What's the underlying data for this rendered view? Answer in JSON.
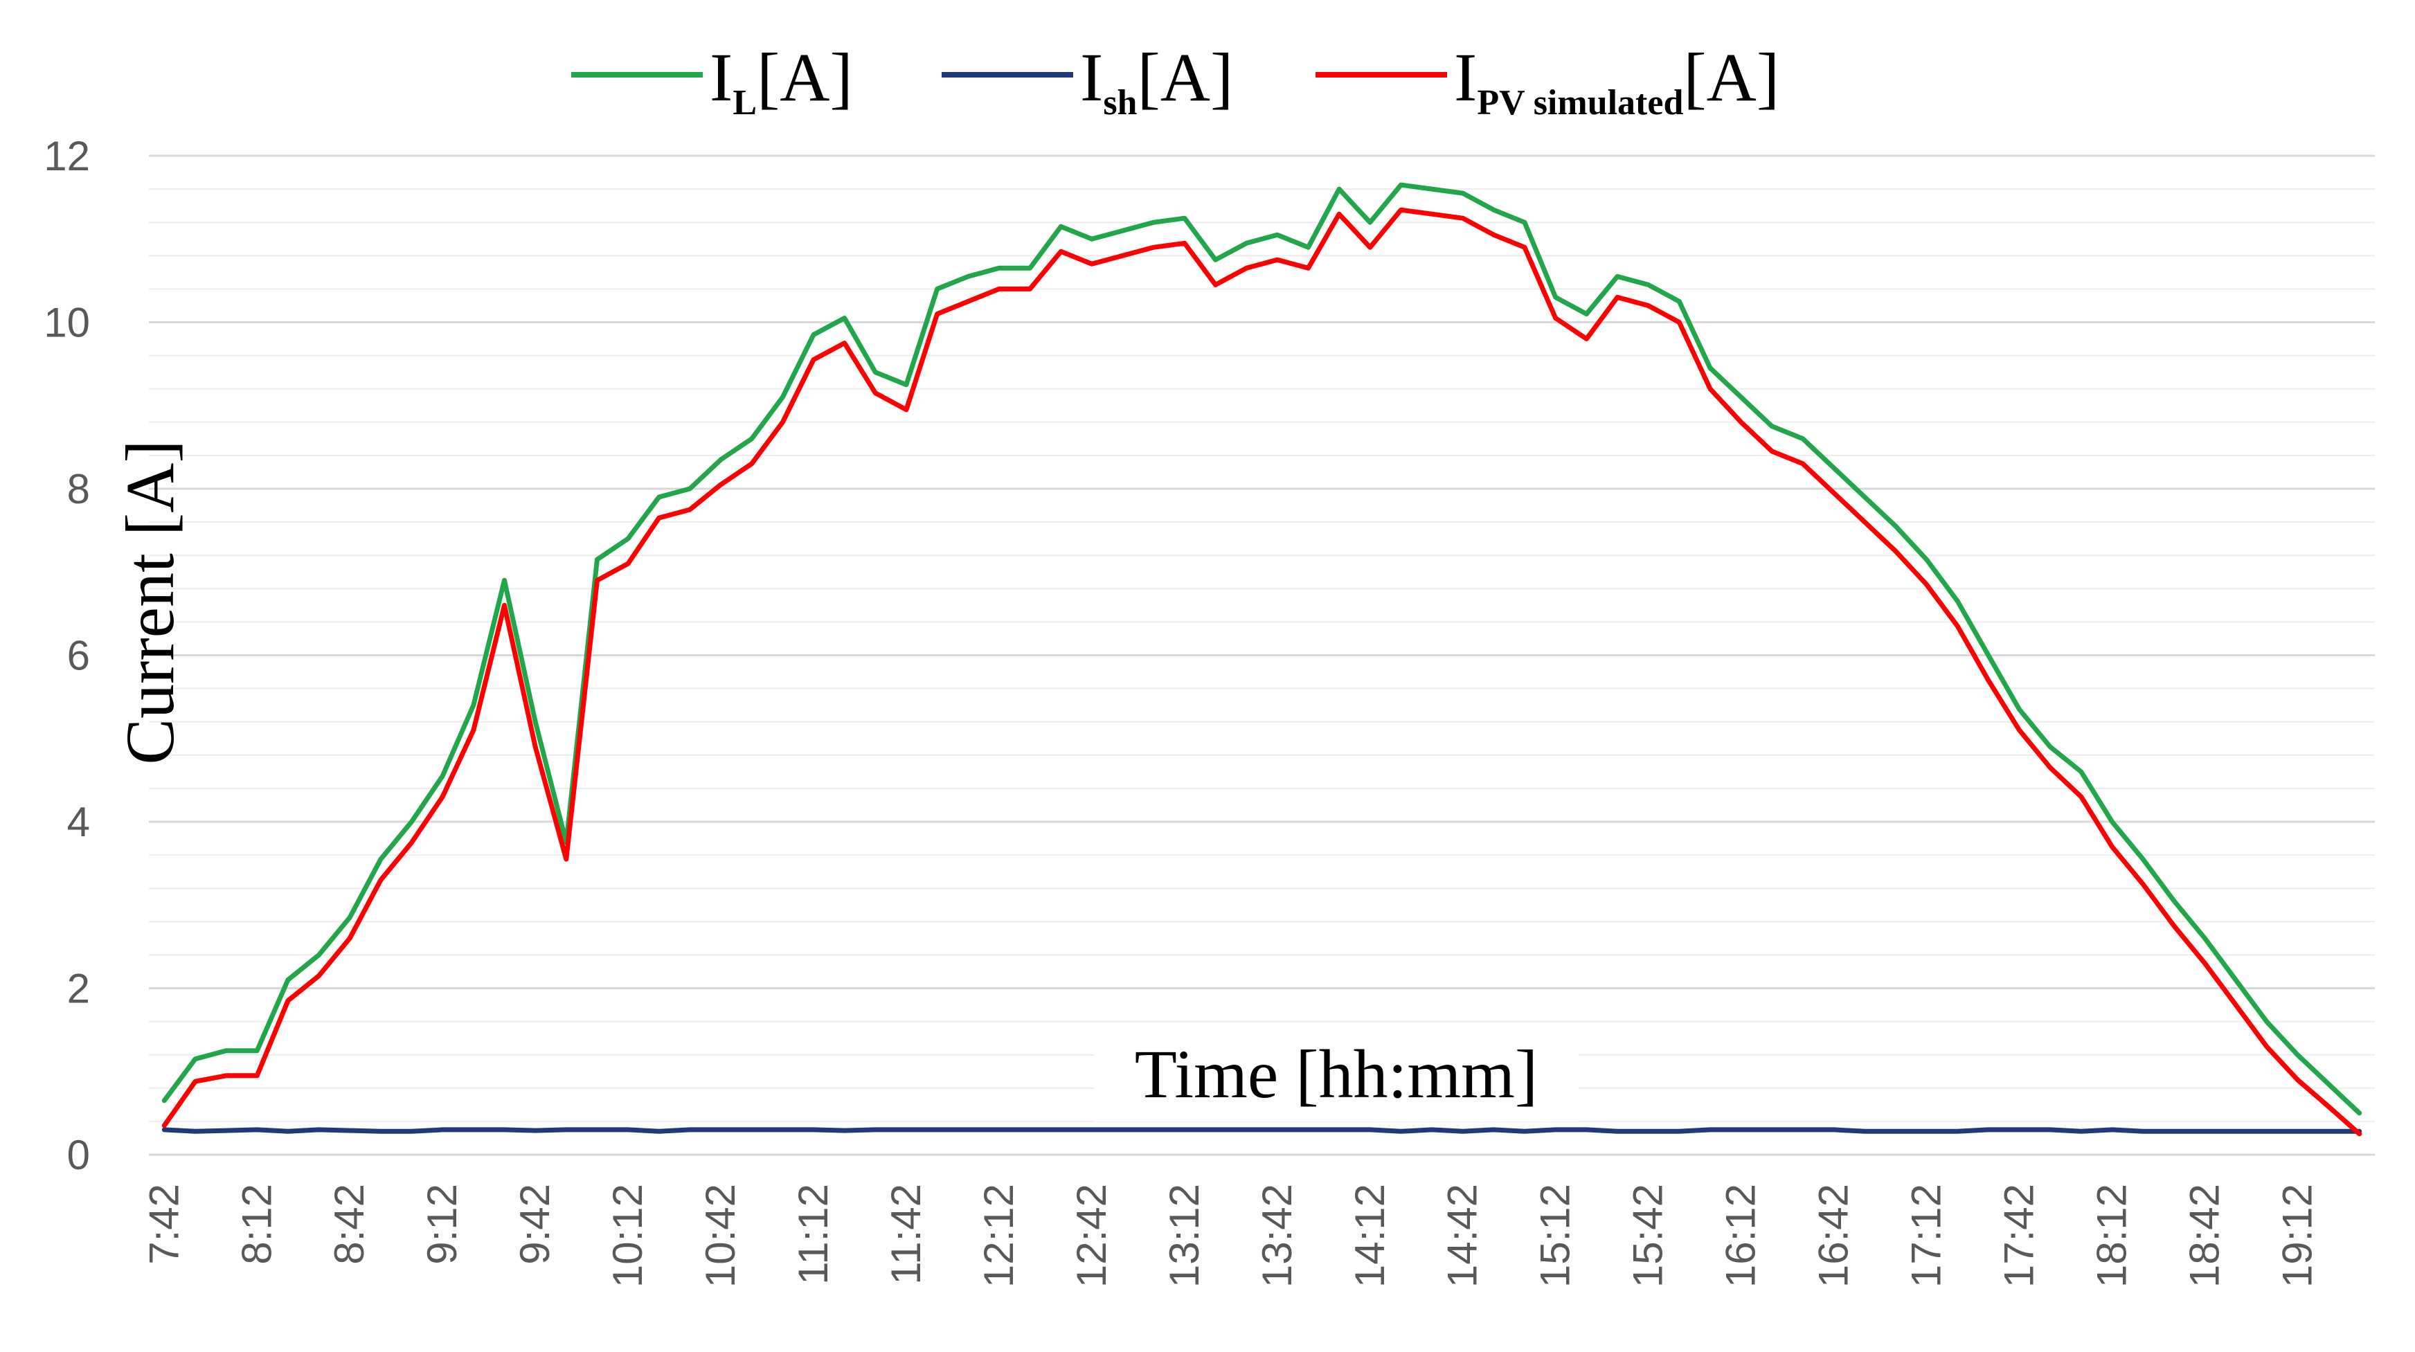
{
  "chart_data": {
    "type": "line",
    "title": "",
    "xlabel": "Time [hh:mm]",
    "ylabel": "Current [A]",
    "ylim": [
      0,
      12
    ],
    "yticks": [
      "0",
      "2",
      "4",
      "6",
      "8",
      "10",
      "12"
    ],
    "grid": true,
    "legend_position": "top",
    "x": [
      "7:42",
      "7:52",
      "8:02",
      "8:12",
      "8:22",
      "8:32",
      "8:42",
      "8:52",
      "9:02",
      "9:12",
      "9:22",
      "9:32",
      "9:42",
      "9:52",
      "10:02",
      "10:12",
      "10:22",
      "10:32",
      "10:42",
      "10:52",
      "11:02",
      "11:12",
      "11:22",
      "11:32",
      "11:42",
      "11:52",
      "12:02",
      "12:12",
      "12:22",
      "12:32",
      "12:42",
      "12:52",
      "13:02",
      "13:12",
      "13:22",
      "13:32",
      "13:42",
      "13:52",
      "14:02",
      "14:12",
      "14:22",
      "14:32",
      "14:42",
      "14:52",
      "15:02",
      "15:12",
      "15:22",
      "15:32",
      "15:42",
      "15:52",
      "16:02",
      "16:12",
      "16:22",
      "16:32",
      "16:42",
      "16:52",
      "17:02",
      "17:12",
      "17:22",
      "17:32",
      "17:42",
      "17:52",
      "18:02",
      "18:12",
      "18:22",
      "18:32",
      "18:42",
      "18:52",
      "19:02",
      "19:12",
      "19:22",
      "19:32"
    ],
    "x_tick_labels": [
      "7:42",
      "8:12",
      "8:42",
      "9:12",
      "9:42",
      "10:12",
      "10:42",
      "11:12",
      "11:42",
      "12:12",
      "12:42",
      "13:12",
      "13:42",
      "14:12",
      "14:42",
      "15:12",
      "15:42",
      "16:12",
      "16:42",
      "17:12",
      "17:42",
      "18:12",
      "18:42",
      "19:12"
    ],
    "series": [
      {
        "name": "I_L[A]",
        "label_main": "I",
        "label_sub": "L",
        "label_unit": "[A]",
        "color": "#21a64a",
        "values": [
          0.65,
          1.15,
          1.25,
          1.25,
          2.1,
          2.4,
          2.85,
          3.55,
          4.0,
          4.55,
          5.4,
          6.9,
          5.2,
          3.75,
          7.15,
          7.4,
          7.9,
          8.0,
          8.35,
          8.6,
          9.1,
          9.85,
          10.05,
          9.4,
          9.25,
          10.4,
          10.55,
          10.65,
          10.65,
          11.15,
          11.0,
          11.1,
          11.2,
          11.25,
          10.75,
          10.95,
          11.05,
          10.9,
          11.6,
          11.2,
          11.65,
          11.6,
          11.55,
          11.35,
          11.2,
          10.3,
          10.1,
          10.55,
          10.45,
          10.25,
          9.45,
          9.1,
          8.75,
          8.6,
          8.25,
          7.9,
          7.55,
          7.15,
          6.65,
          6.0,
          5.35,
          4.9,
          4.6,
          4.0,
          3.55,
          3.05,
          2.6,
          2.1,
          1.6,
          1.2,
          0.85,
          0.5
        ]
      },
      {
        "name": "I_sh[A]",
        "label_main": "I",
        "label_sub": "sh",
        "label_unit": "[A]",
        "color": "#1f3a7a",
        "values": [
          0.3,
          0.28,
          0.29,
          0.3,
          0.28,
          0.3,
          0.29,
          0.28,
          0.28,
          0.3,
          0.3,
          0.3,
          0.29,
          0.3,
          0.3,
          0.3,
          0.28,
          0.3,
          0.3,
          0.3,
          0.3,
          0.3,
          0.29,
          0.3,
          0.3,
          0.3,
          0.3,
          0.3,
          0.3,
          0.3,
          0.3,
          0.3,
          0.3,
          0.3,
          0.3,
          0.3,
          0.3,
          0.3,
          0.3,
          0.3,
          0.28,
          0.3,
          0.28,
          0.3,
          0.28,
          0.3,
          0.3,
          0.28,
          0.28,
          0.28,
          0.3,
          0.3,
          0.3,
          0.3,
          0.3,
          0.28,
          0.28,
          0.28,
          0.28,
          0.3,
          0.3,
          0.3,
          0.28,
          0.3,
          0.28,
          0.28,
          0.28,
          0.28,
          0.28,
          0.28,
          0.28,
          0.28
        ]
      },
      {
        "name": "I_PV simulated[A]",
        "label_main": "I",
        "label_sub": "PV simulated",
        "label_unit": "[A]",
        "color": "#ff0000",
        "values": [
          0.35,
          0.88,
          0.95,
          0.95,
          1.85,
          2.15,
          2.6,
          3.3,
          3.75,
          4.3,
          5.1,
          6.6,
          4.9,
          3.55,
          6.9,
          7.1,
          7.65,
          7.75,
          8.05,
          8.3,
          8.8,
          9.55,
          9.75,
          9.15,
          8.95,
          10.1,
          10.25,
          10.4,
          10.4,
          10.85,
          10.7,
          10.8,
          10.9,
          10.95,
          10.45,
          10.65,
          10.75,
          10.65,
          11.3,
          10.9,
          11.35,
          11.3,
          11.25,
          11.05,
          10.9,
          10.05,
          9.8,
          10.3,
          10.2,
          10.0,
          9.2,
          8.8,
          8.45,
          8.3,
          7.95,
          7.6,
          7.25,
          6.85,
          6.35,
          5.7,
          5.1,
          4.65,
          4.3,
          3.7,
          3.25,
          2.75,
          2.3,
          1.8,
          1.3,
          0.9,
          0.58,
          0.25
        ]
      }
    ]
  }
}
